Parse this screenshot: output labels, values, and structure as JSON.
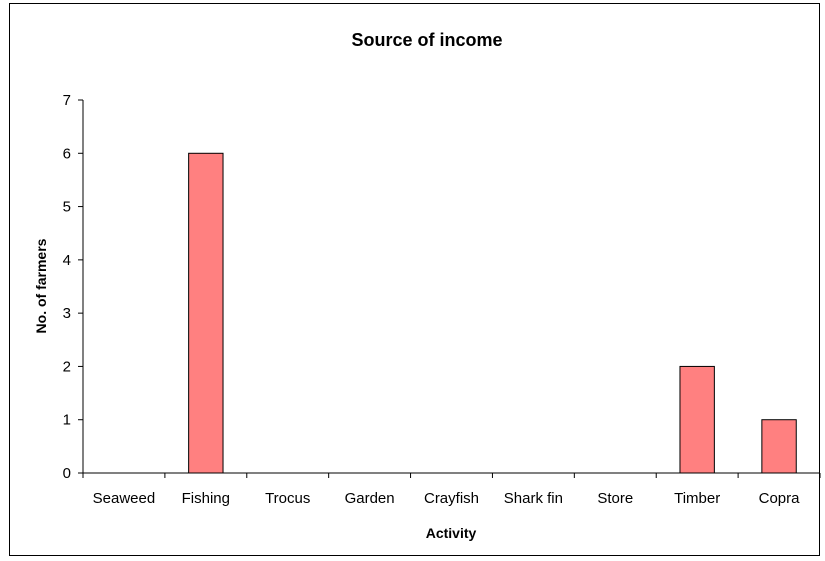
{
  "chart_data": {
    "type": "bar",
    "title": "Source of income",
    "xlabel": "Activity",
    "ylabel": "No. of farmers",
    "categories": [
      "Seaweed",
      "Fishing",
      "Trocus",
      "Garden",
      "Crayfish",
      "Shark fin",
      "Store",
      "Timber",
      "Copra"
    ],
    "values": [
      0,
      6,
      0,
      0,
      0,
      0,
      0,
      2,
      1
    ],
    "ylim": [
      0,
      7
    ],
    "yticks": [
      "0",
      "1",
      "2",
      "3",
      "4",
      "5",
      "6",
      "7"
    ],
    "bar_color": "#ff8080",
    "bar_edge_color": "#000000",
    "grid": false,
    "legend": "none"
  }
}
